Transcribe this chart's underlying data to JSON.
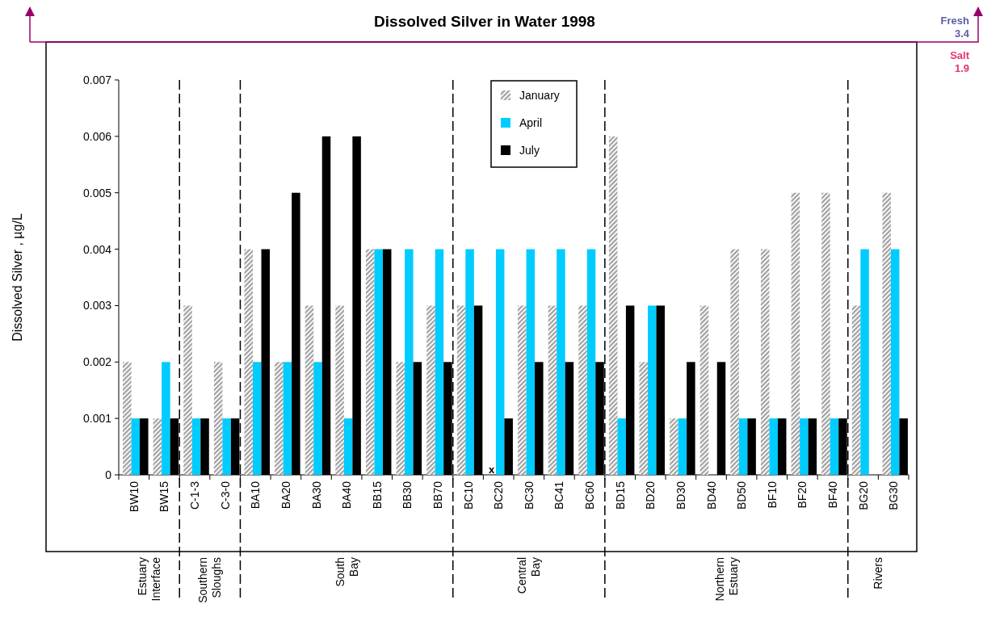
{
  "chart_data": {
    "type": "bar",
    "title": "Dissolved Silver in Water 1998",
    "ylabel": "Dissolved Silver , µg/L",
    "categories": [
      "BW10",
      "BW15",
      "C-1-3",
      "C-3-0",
      "BA10",
      "BA20",
      "BA30",
      "BA40",
      "BB15",
      "BB30",
      "BB70",
      "BC10",
      "BC20",
      "BC30",
      "BC41",
      "BC60",
      "BD15",
      "BD20",
      "BD30",
      "BD40",
      "BD50",
      "BF10",
      "BF20",
      "BF40",
      "BG20",
      "BG30"
    ],
    "series": [
      {
        "name": "January",
        "color": "#a0a0a0",
        "values": [
          0.002,
          0.001,
          0.003,
          0.002,
          0.004,
          0.002,
          0.003,
          0.003,
          0.004,
          0.002,
          0.003,
          0.003,
          null,
          0.003,
          0.003,
          0.003,
          0.006,
          0.002,
          0.001,
          0.003,
          0.004,
          0.004,
          0.005,
          0.005,
          0.003,
          0.005
        ]
      },
      {
        "name": "April",
        "color": "#00ccff",
        "values": [
          0.001,
          0.002,
          0.001,
          0.001,
          0.002,
          0.002,
          0.002,
          0.001,
          0.004,
          0.004,
          0.004,
          0.004,
          0.004,
          0.004,
          0.004,
          0.004,
          0.001,
          0.003,
          0.001,
          null,
          0.001,
          0.001,
          0.001,
          0.001,
          0.004,
          0.004
        ]
      },
      {
        "name": "July",
        "color": "#000000",
        "values": [
          0.001,
          0.001,
          0.001,
          0.001,
          0.004,
          0.005,
          0.006,
          0.006,
          0.004,
          0.002,
          0.002,
          0.003,
          0.001,
          0.002,
          0.002,
          0.002,
          0.003,
          0.003,
          0.002,
          0.002,
          0.001,
          0.001,
          0.001,
          0.001,
          null,
          0.001
        ]
      }
    ],
    "ylim": [
      0,
      0.007
    ],
    "yticks": [
      0,
      0.001,
      0.002,
      0.003,
      0.004,
      0.005,
      0.006,
      0.007
    ],
    "grid": false,
    "legend": "top",
    "annotations": [
      "Estuary\nInterface",
      "Southern\nSloughs",
      "South\nBay",
      "Central\nBay",
      "Northern\nEstuary",
      "Rivers",
      {
        "text": "x",
        "x": "BC20",
        "y": 0
      },
      "Fresh\n3.4",
      "Salt\n1.9"
    ]
  }
}
